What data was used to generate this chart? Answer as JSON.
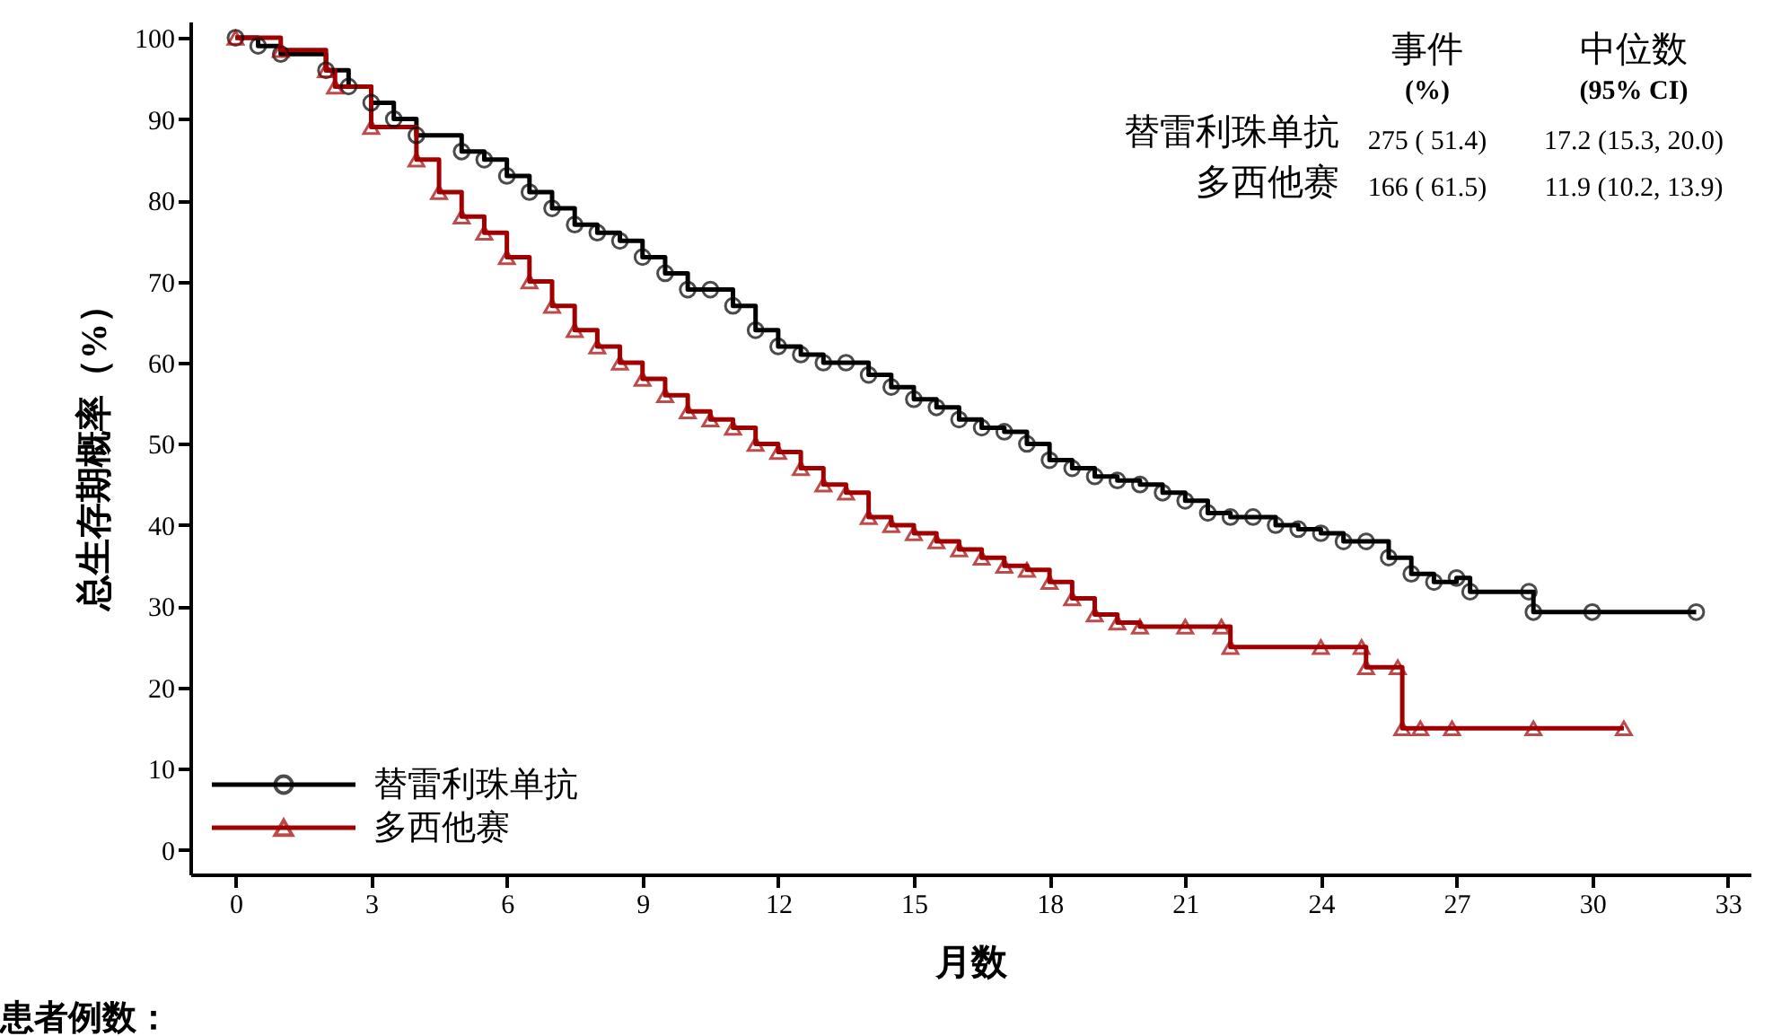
{
  "chart_data": {
    "type": "step",
    "xlabel": "月数",
    "ylabel": "总生存期概率（%）",
    "xlim": [
      -1,
      33.5
    ],
    "ylim": [
      -3,
      102
    ],
    "xticks": [
      0,
      3,
      6,
      9,
      12,
      15,
      18,
      21,
      24,
      27,
      30,
      33
    ],
    "yticks": [
      0,
      10,
      20,
      30,
      40,
      50,
      60,
      70,
      80,
      90,
      100
    ],
    "grid": false,
    "legend": "bottom left",
    "line_style": "solid",
    "annotations": [
      "事件",
      "中位数",
      "(%)",
      "(95% CI)",
      "替雷利珠单抗",
      "275 ( 51.4)",
      "17.2 (15.3, 20.0)",
      "多西他赛",
      "166 ( 61.5)",
      "11.9 (10.2, 13.9)",
      "患者例数："
    ],
    "series": [
      {
        "name": "替雷利珠单抗",
        "color": "#000000",
        "marker": "circle",
        "x": [
          0,
          0.5,
          1,
          2,
          2.5,
          3,
          3.5,
          4,
          5,
          5.5,
          6,
          6.5,
          7,
          7.5,
          8,
          8.5,
          9,
          9.5,
          10,
          10.5,
          11,
          11.5,
          12,
          12.5,
          13,
          13.5,
          14,
          14.5,
          15,
          15.5,
          16,
          16.5,
          17,
          17.5,
          18,
          18.5,
          19,
          19.5,
          20,
          20.5,
          21,
          21.5,
          22,
          22.5,
          23,
          23.5,
          24,
          24.5,
          25,
          25.5,
          26,
          26.5,
          27,
          27.3,
          28.6,
          28.7,
          30,
          32.3
        ],
        "values": [
          100,
          99,
          98,
          96,
          94,
          92,
          90,
          88,
          86,
          85,
          83,
          81,
          79,
          77,
          76,
          75,
          73,
          71,
          69,
          69,
          67,
          64,
          62,
          61,
          60,
          60,
          58.5,
          57,
          55.5,
          54.5,
          53,
          52,
          51.5,
          50,
          48,
          47,
          46,
          45.5,
          45,
          44,
          43,
          41.5,
          41,
          41,
          40,
          39.5,
          39,
          38,
          38,
          36,
          34,
          33,
          33.5,
          31.8,
          31.8,
          29.3,
          29.3,
          29.3
        ]
      },
      {
        "name": "多西他赛",
        "color": "#a00000",
        "marker": "triangle",
        "x": [
          0,
          1,
          2,
          2.2,
          3,
          4,
          4.5,
          5,
          5.5,
          6,
          6.5,
          7,
          7.5,
          8,
          8.5,
          9,
          9.5,
          10,
          10.5,
          11,
          11.5,
          12,
          12.5,
          13,
          13.5,
          14,
          14.5,
          15,
          15.5,
          16,
          16.5,
          17,
          17.5,
          18,
          18.5,
          19,
          19.5,
          20,
          21,
          21.8,
          22,
          24,
          24.9,
          25,
          25.7,
          25.8,
          26.2,
          26.9,
          28.7,
          30.7
        ],
        "values": [
          100,
          98.5,
          96,
          94,
          89,
          85,
          81,
          78,
          76,
          73,
          70,
          67,
          64,
          62,
          60,
          58,
          56,
          54,
          53,
          52,
          50,
          49,
          47,
          45,
          44,
          41,
          40,
          39,
          38,
          37,
          36,
          35,
          34.5,
          33,
          31,
          29,
          28,
          27.5,
          27.5,
          27.5,
          25,
          25,
          25,
          22.5,
          22.5,
          15,
          15,
          15,
          15,
          15
        ]
      }
    ]
  }
}
